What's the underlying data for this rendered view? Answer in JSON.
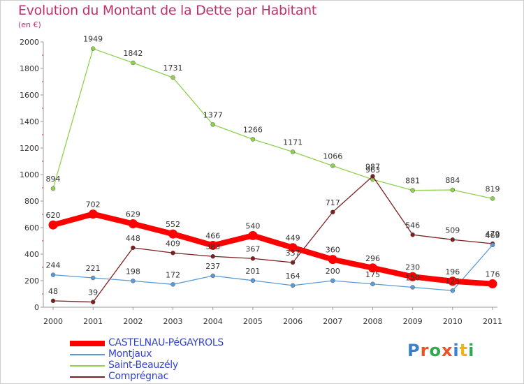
{
  "header": {
    "title": "Evolution du Montant de la Dette par Habitant",
    "subtitle": "(en €)"
  },
  "logo": {
    "text": "Proxiti",
    "colors": [
      "#3a7fd0",
      "#e8542a",
      "#2fa84f",
      "#e8542a",
      "#3a7fd0",
      "#f0b416",
      "#2fa84f"
    ]
  },
  "chart_data": {
    "type": "line",
    "x": [
      "2000",
      "2001",
      "2002",
      "2003",
      "2004",
      "2005",
      "2006",
      "2007",
      "2008",
      "2009",
      "2010",
      "2011"
    ],
    "ylim": [
      0,
      2000
    ],
    "yticks": [
      "0",
      "200",
      "400",
      "600",
      "800",
      "1000",
      "1200",
      "1400",
      "1600",
      "1800",
      "2000"
    ],
    "grid": false,
    "legend_position": "bottom-left",
    "series": [
      {
        "name": "CASTELNAU-PéGAYROLS",
        "color": "#ff0000",
        "values": [
          620,
          702,
          629,
          552,
          466,
          540,
          449,
          360,
          296,
          230,
          196,
          176
        ],
        "labels": [
          "620",
          "702",
          "629",
          "552",
          "466",
          "540",
          "449",
          "360",
          "296",
          "230",
          "196",
          "176"
        ]
      },
      {
        "name": "Montjaux",
        "color": "#5b9bd5",
        "values": [
          244,
          221,
          198,
          172,
          237,
          201,
          164,
          200,
          175,
          150,
          125,
          469
        ],
        "labels": [
          "244",
          "221",
          "198",
          "172",
          "237",
          "201",
          "164",
          "200",
          "175",
          "150",
          "125",
          "469"
        ]
      },
      {
        "name": "Saint-Beauzély",
        "color": "#8fd14f",
        "values": [
          894,
          1949,
          1842,
          1731,
          1377,
          1266,
          1171,
          1066,
          963,
          881,
          884,
          819
        ],
        "labels": [
          "894",
          "1949",
          "1842",
          "1731",
          "1377",
          "1266",
          "1171",
          "1066",
          "963",
          "881",
          "884",
          "819"
        ]
      },
      {
        "name": "Comprégnac",
        "color": "#7b1f1f",
        "values": [
          48,
          39,
          448,
          409,
          383,
          367,
          337,
          717,
          987,
          546,
          509,
          479
        ],
        "labels": [
          "48",
          "39",
          "448",
          "409",
          "383",
          "367",
          "337",
          "717",
          "987",
          "546",
          "509",
          "479"
        ]
      }
    ]
  }
}
